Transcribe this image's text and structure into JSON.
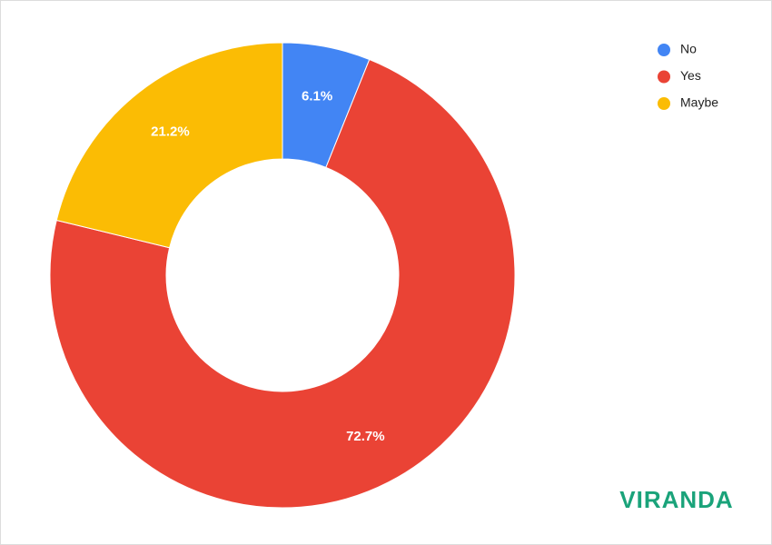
{
  "chart_data": {
    "type": "donut",
    "categories": [
      "No",
      "Yes",
      "Maybe"
    ],
    "values": [
      6.1,
      72.7,
      21.2
    ],
    "value_labels": [
      "6.1%",
      "72.7%",
      "21.2%"
    ],
    "colors": [
      "#4285f4",
      "#ea4335",
      "#fbbc04"
    ],
    "legend": "top-right"
  },
  "logo": "VIRANDA"
}
